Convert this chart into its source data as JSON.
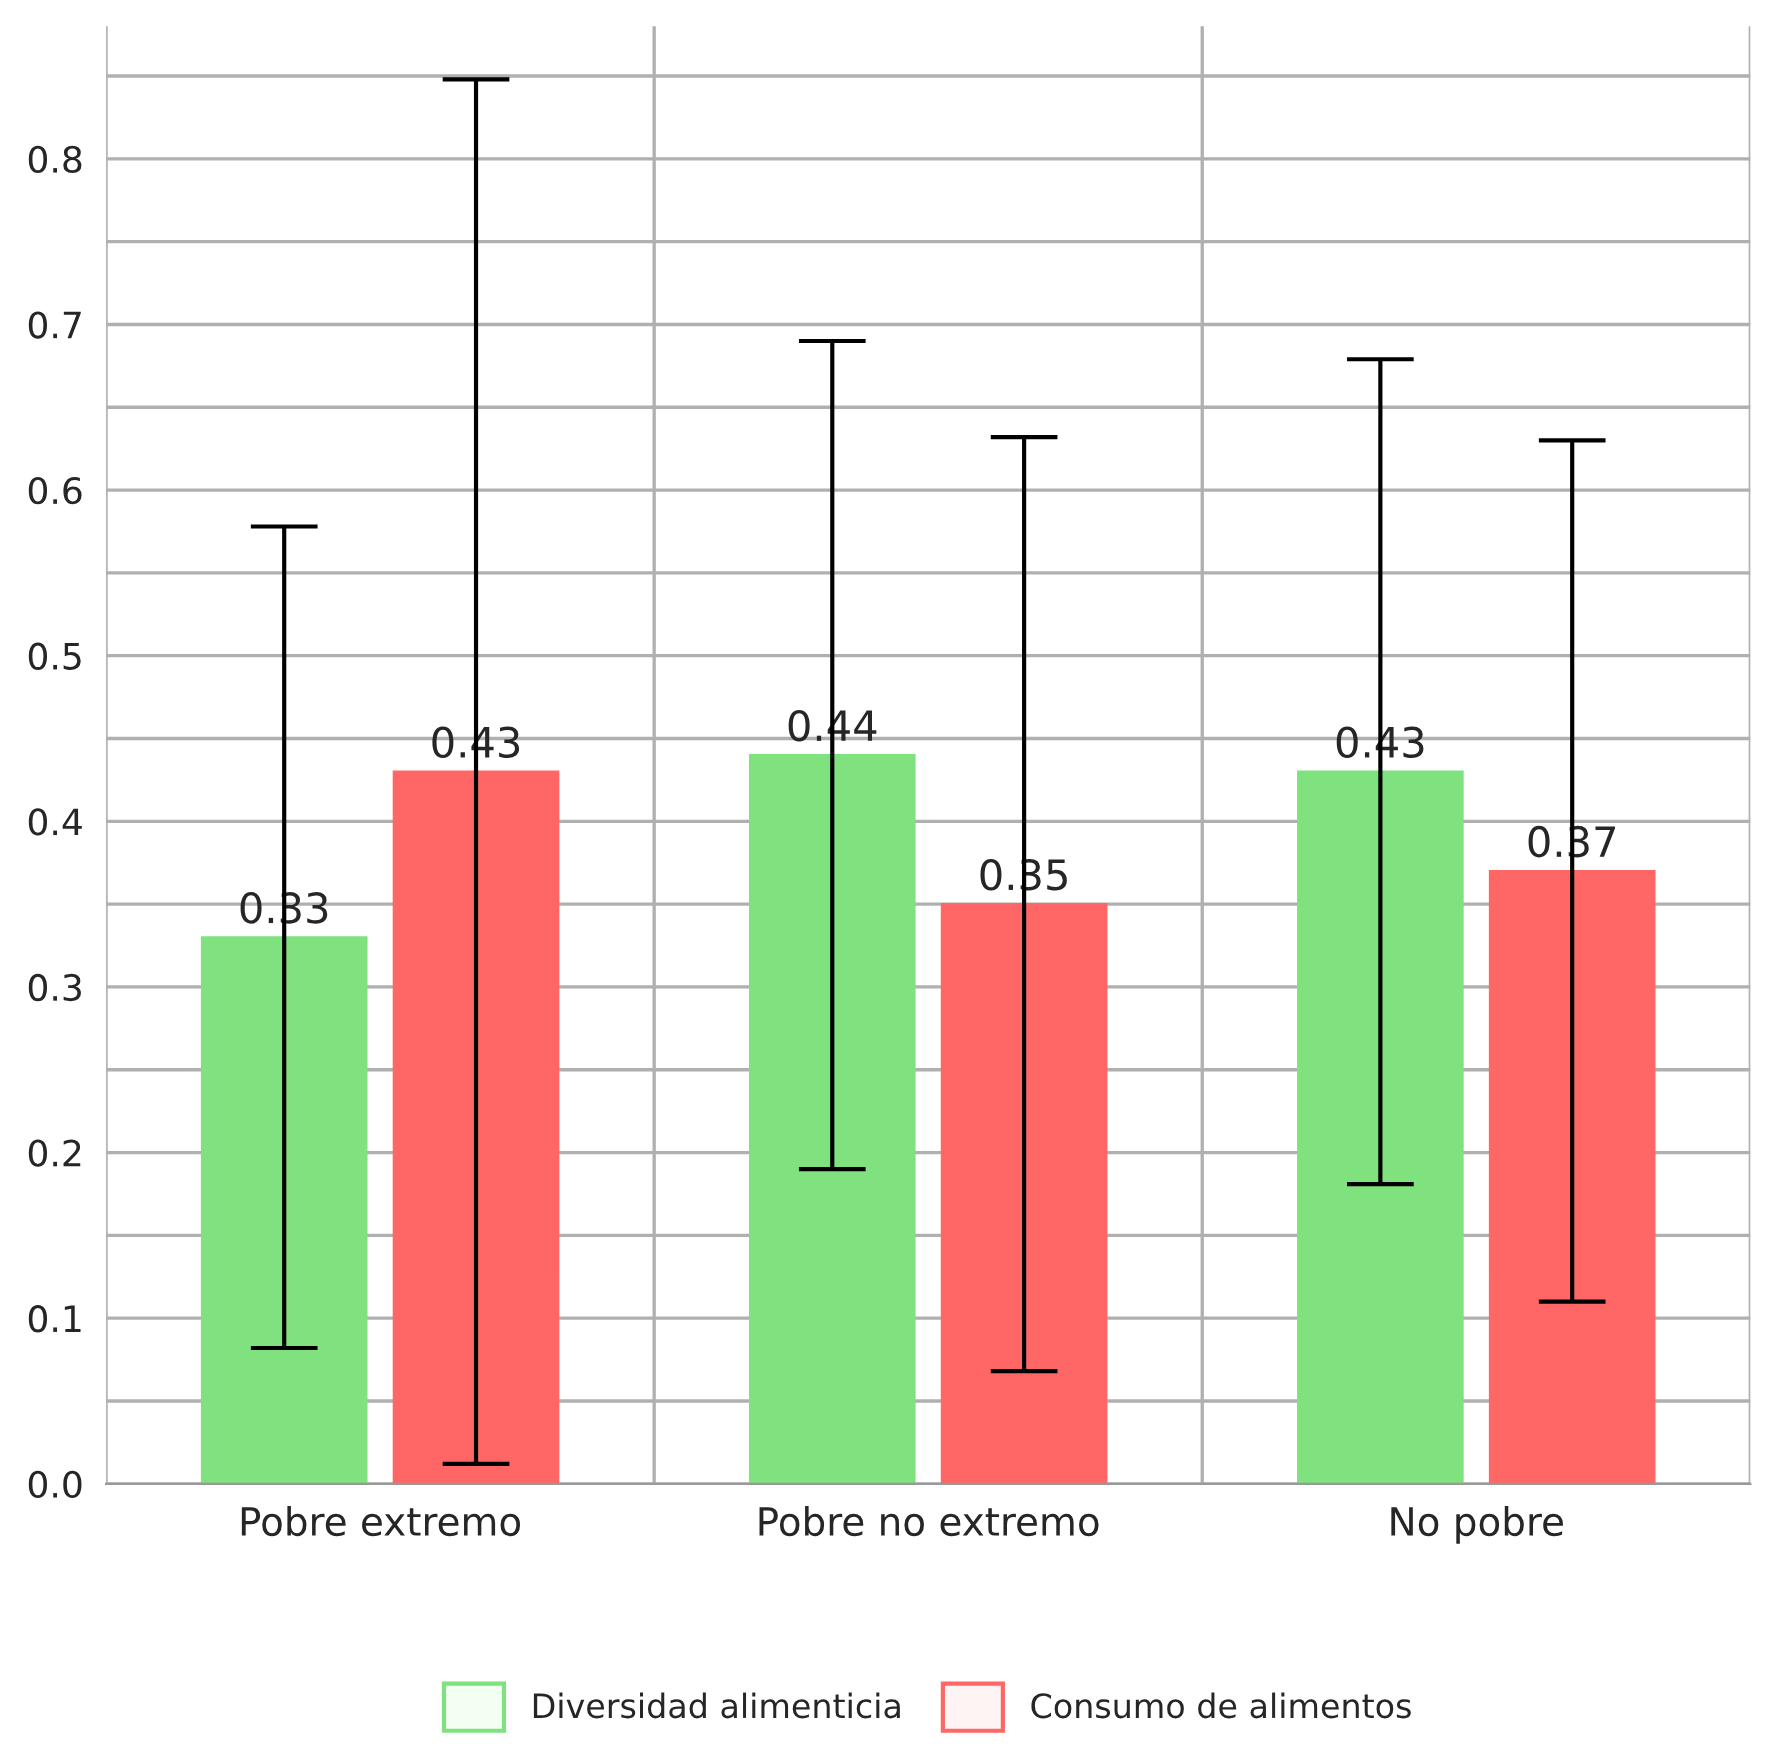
{
  "chart_data": {
    "type": "bar",
    "categories": [
      "Pobre extremo",
      "Pobre no extremo",
      "No pobre"
    ],
    "series": [
      {
        "name": "Diversidad alimenticia",
        "color": "#7fe27f",
        "values": [
          0.33,
          0.44,
          0.43
        ],
        "errors": [
          0.248,
          0.25,
          0.249
        ]
      },
      {
        "name": "Consumo de alimentos",
        "color": "#ff6666",
        "values": [
          0.43,
          0.35,
          0.37
        ],
        "errors": [
          0.418,
          0.282,
          0.26
        ]
      }
    ],
    "ylim": [
      0,
      0.88
    ],
    "yticks": [
      {
        "value": 0.0,
        "label": "0.0"
      },
      {
        "value": 0.05,
        "label": null
      },
      {
        "value": 0.1,
        "label": "0.1"
      },
      {
        "value": 0.15,
        "label": null
      },
      {
        "value": 0.2,
        "label": "0.2"
      },
      {
        "value": 0.25,
        "label": null
      },
      {
        "value": 0.3,
        "label": "0.3"
      },
      {
        "value": 0.35,
        "label": null
      },
      {
        "value": 0.4,
        "label": "0.4"
      },
      {
        "value": 0.45,
        "label": null
      },
      {
        "value": 0.5,
        "label": "0.5"
      },
      {
        "value": 0.55,
        "label": null
      },
      {
        "value": 0.6,
        "label": "0.6"
      },
      {
        "value": 0.65,
        "label": null
      },
      {
        "value": 0.7,
        "label": "0.7"
      },
      {
        "value": 0.75,
        "label": null
      },
      {
        "value": 0.8,
        "label": "0.8"
      },
      {
        "value": 0.85,
        "label": null
      }
    ],
    "grid": true,
    "data_labels": true,
    "legend": "bottom"
  }
}
